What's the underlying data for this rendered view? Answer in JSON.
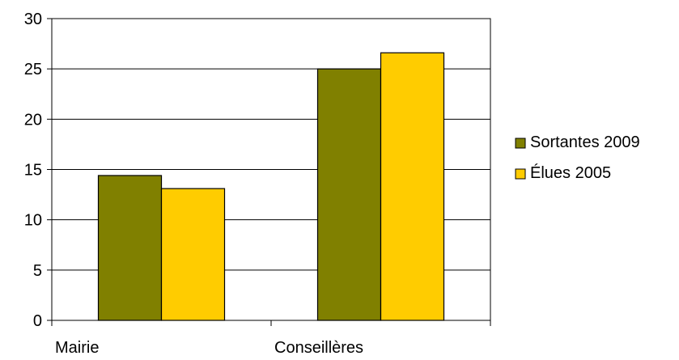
{
  "chart_data": {
    "type": "bar",
    "categories": [
      "Mairie",
      "Conseillères"
    ],
    "series": [
      {
        "name": "Sortantes 2009",
        "values": [
          14.4,
          25.0
        ],
        "color": "#808000"
      },
      {
        "name": "Élues 2005",
        "values": [
          13.1,
          26.6
        ],
        "color": "#FFCC00"
      }
    ],
    "ylim": [
      0,
      30
    ],
    "yticks": [
      0,
      5,
      10,
      15,
      20,
      25,
      30
    ],
    "grid": true,
    "legend_position": "right"
  }
}
